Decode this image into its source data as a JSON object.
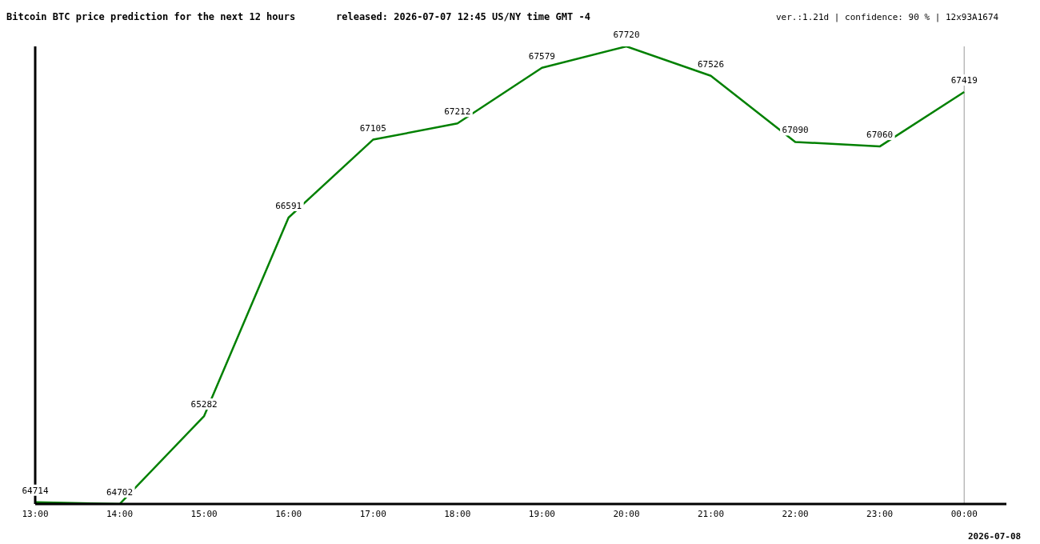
{
  "chart_data": {
    "type": "line",
    "title": "Bitcoin BTC price prediction for the next 12 hours",
    "subtitle": "released: 2026-07-07 12:45 US/NY time GMT -4",
    "annotations": [
      "ver.:1.21d | confidence: 90 % | 12x93A1674",
      "2026-07-08"
    ],
    "categories": [
      "13:00",
      "14:00",
      "15:00",
      "16:00",
      "17:00",
      "18:00",
      "19:00",
      "20:00",
      "21:00",
      "22:00",
      "23:00",
      "00:00"
    ],
    "series": [
      {
        "color": "#008000",
        "values": [
          64714,
          64702,
          65282,
          66591,
          67105,
          67212,
          67579,
          67720,
          67526,
          67090,
          67060,
          67419
        ]
      }
    ],
    "data_labels": true,
    "grid": false,
    "legend": false,
    "marker": "none",
    "line_style": "solid",
    "ref_lines": [
      {
        "axis": "x",
        "value": "00:00",
        "color": "#999999"
      }
    ]
  }
}
